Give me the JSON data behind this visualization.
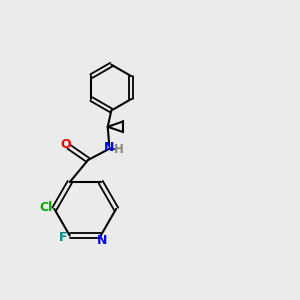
{
  "background_color": "#ebebeb",
  "bond_color": "#000000",
  "atom_colors": {
    "N_blue": "#0000ee",
    "O": "#ee0000",
    "Cl": "#00aa00",
    "F": "#008888",
    "H": "#888888"
  },
  "figsize": [
    3.0,
    3.0
  ],
  "dpi": 100
}
